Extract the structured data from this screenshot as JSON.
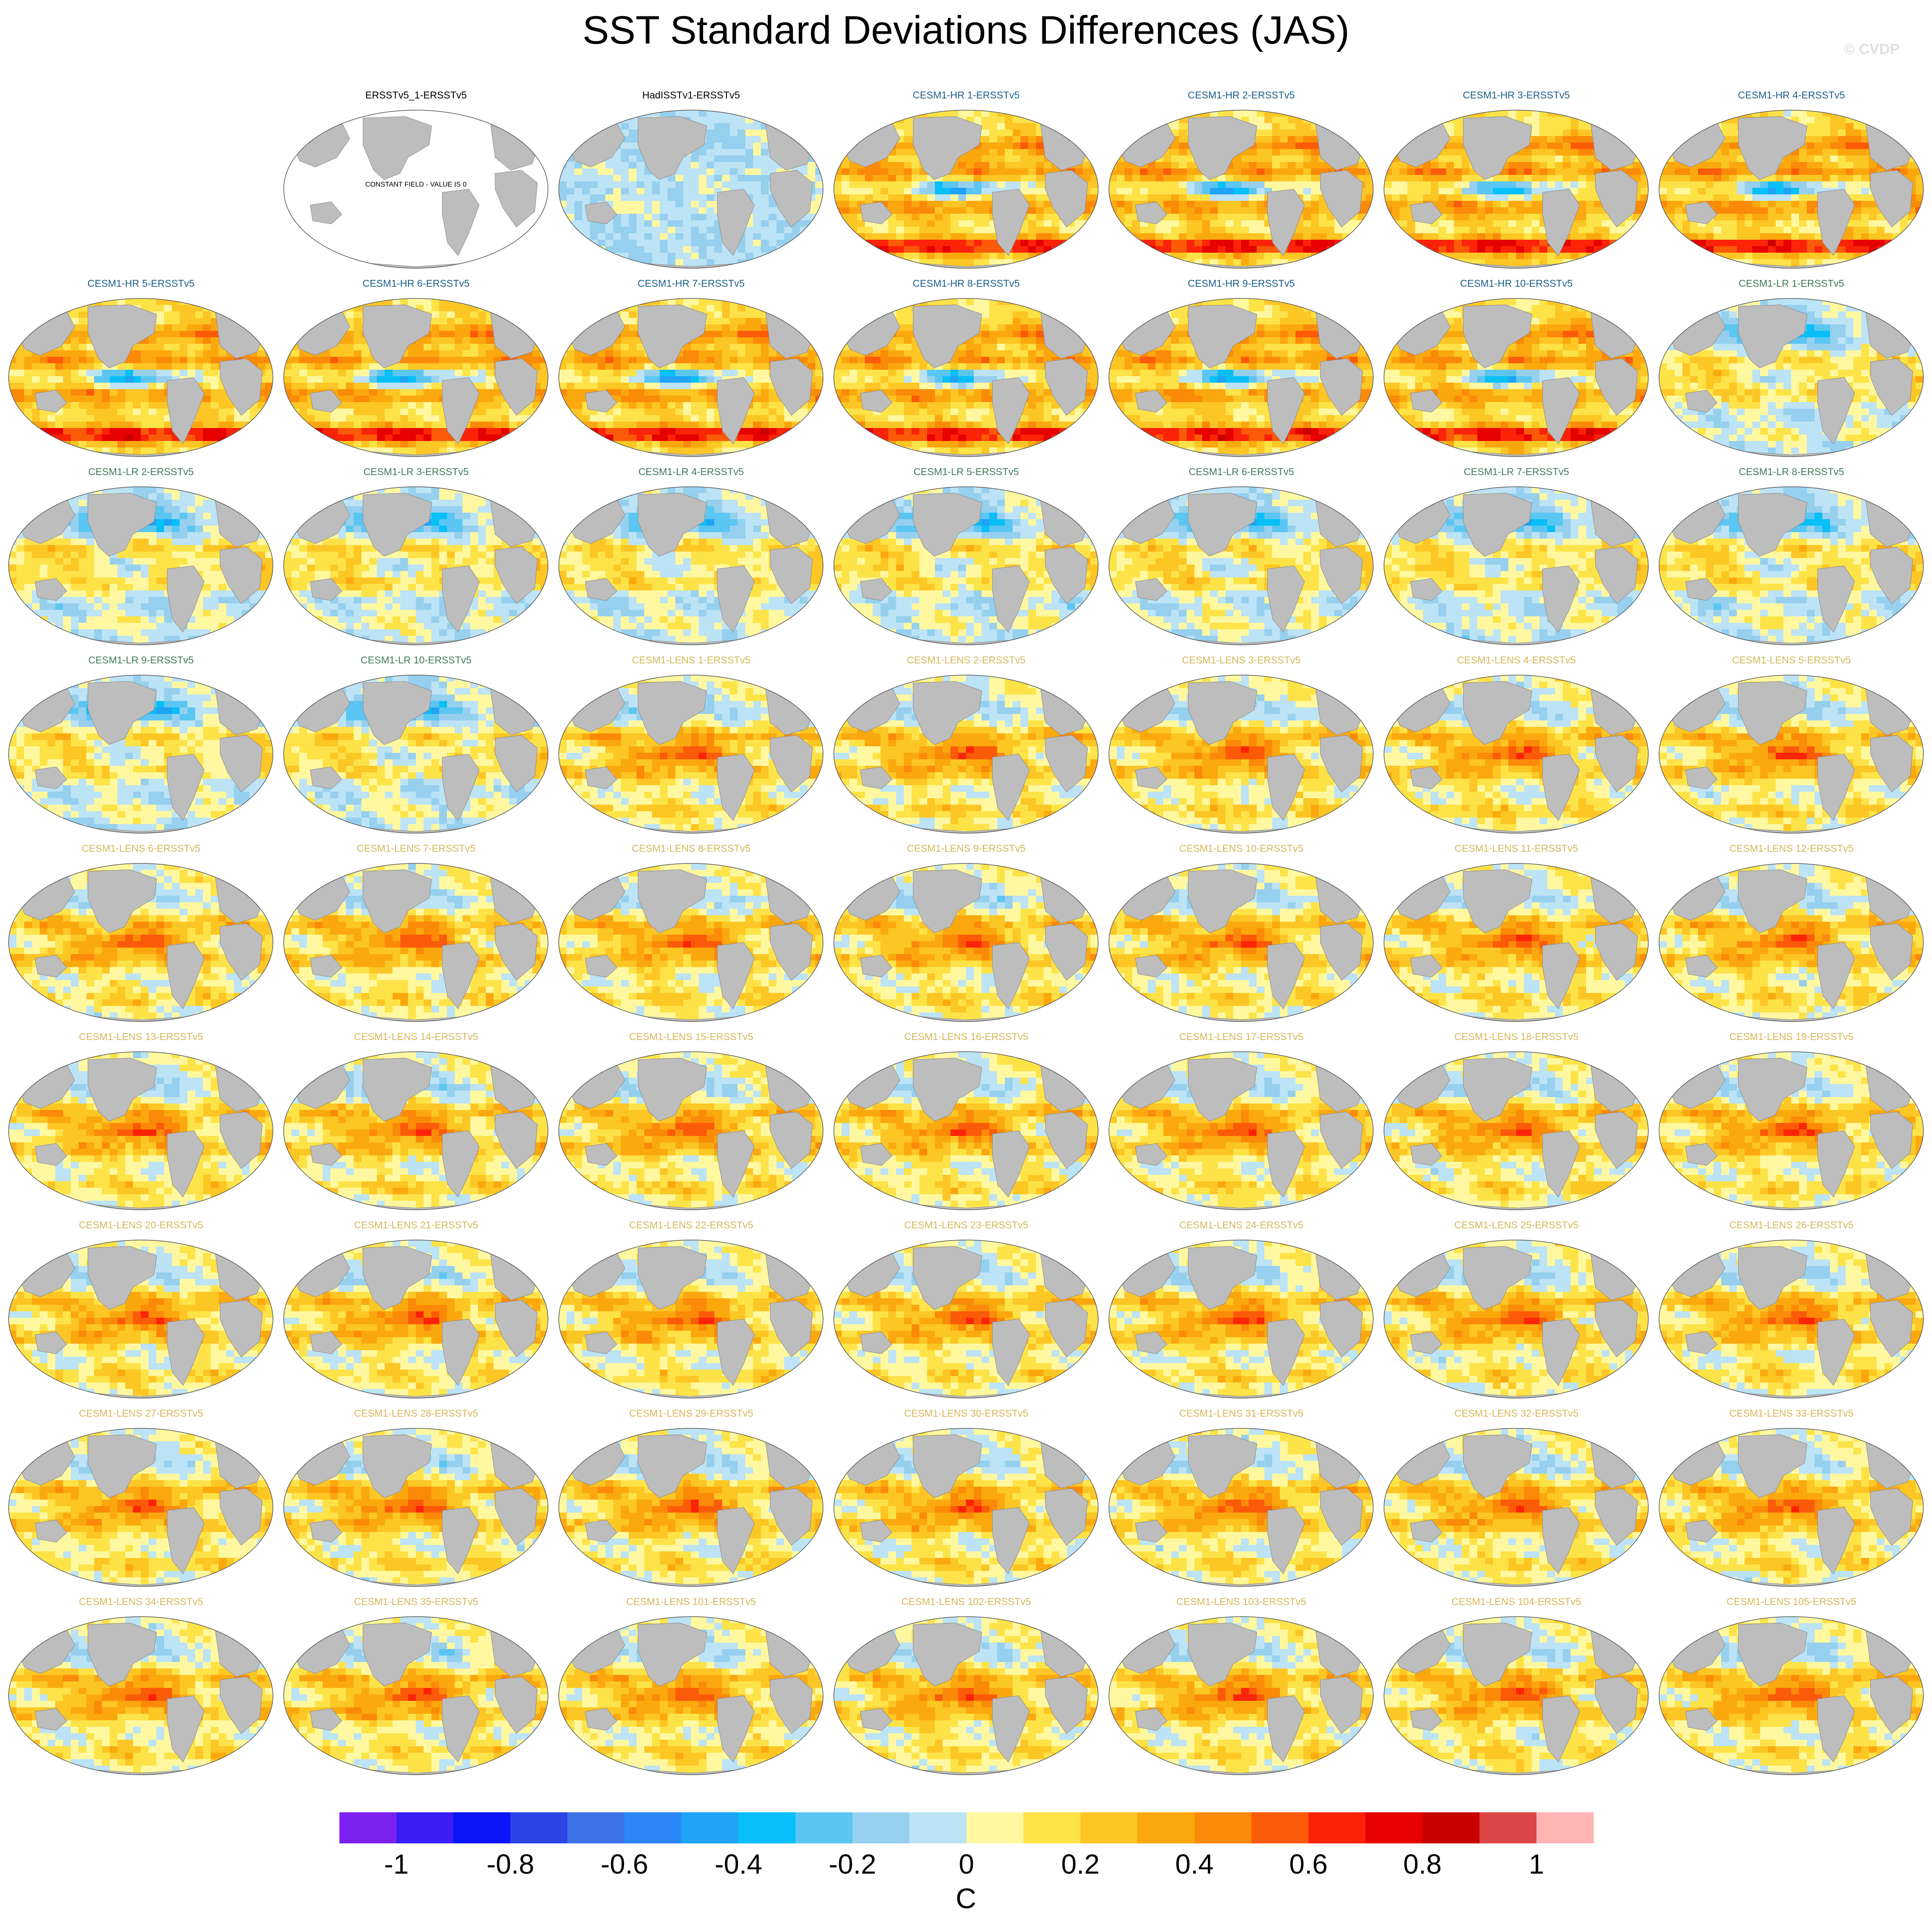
{
  "title": "SST Standard Deviations Differences (JAS)",
  "watermark": "© CVDP",
  "colors": {
    "land": "#bdbdbd",
    "obs_panel_title": "#000000",
    "hr_panel_title": "#1b5f8a",
    "lr_panel_title": "#3f7b5c",
    "lens_panel_title": "#d6b75a"
  },
  "chart_data": {
    "type": "heatmap",
    "projection": "Robinson (global)",
    "panel_layout": {
      "rows": 9,
      "columns": 7
    },
    "constant_field_note": "CONSTANT FIELD - VALUE IS 0",
    "panels": [
      {
        "title": "ERSSTv5_1-ERSSTv5",
        "group": "obs",
        "constant": true
      },
      {
        "title": "HadISSTv1-ERSSTv5",
        "group": "obs"
      },
      {
        "title": "CESM1-HR 1-ERSSTv5",
        "group": "hr"
      },
      {
        "title": "CESM1-HR 2-ERSSTv5",
        "group": "hr"
      },
      {
        "title": "CESM1-HR 3-ERSSTv5",
        "group": "hr"
      },
      {
        "title": "CESM1-HR 4-ERSSTv5",
        "group": "hr"
      },
      {
        "title": "CESM1-HR 5-ERSSTv5",
        "group": "hr"
      },
      {
        "title": "CESM1-HR 6-ERSSTv5",
        "group": "hr"
      },
      {
        "title": "CESM1-HR 7-ERSSTv5",
        "group": "hr"
      },
      {
        "title": "CESM1-HR 8-ERSSTv5",
        "group": "hr"
      },
      {
        "title": "CESM1-HR 9-ERSSTv5",
        "group": "hr"
      },
      {
        "title": "CESM1-HR 10-ERSSTv5",
        "group": "hr"
      },
      {
        "title": "CESM1-LR 1-ERSSTv5",
        "group": "lr"
      },
      {
        "title": "CESM1-LR 2-ERSSTv5",
        "group": "lr"
      },
      {
        "title": "CESM1-LR 3-ERSSTv5",
        "group": "lr"
      },
      {
        "title": "CESM1-LR 4-ERSSTv5",
        "group": "lr"
      },
      {
        "title": "CESM1-LR 5-ERSSTv5",
        "group": "lr"
      },
      {
        "title": "CESM1-LR 6-ERSSTv5",
        "group": "lr"
      },
      {
        "title": "CESM1-LR 7-ERSSTv5",
        "group": "lr"
      },
      {
        "title": "CESM1-LR 8-ERSSTv5",
        "group": "lr"
      },
      {
        "title": "CESM1-LR 9-ERSSTv5",
        "group": "lr"
      },
      {
        "title": "CESM1-LR 10-ERSSTv5",
        "group": "lr"
      },
      {
        "title": "CESM1-LENS 1-ERSSTv5",
        "group": "lens"
      },
      {
        "title": "CESM1-LENS 2-ERSSTv5",
        "group": "lens"
      },
      {
        "title": "CESM1-LENS 3-ERSSTv5",
        "group": "lens"
      },
      {
        "title": "CESM1-LENS 4-ERSSTv5",
        "group": "lens"
      },
      {
        "title": "CESM1-LENS 5-ERSSTv5",
        "group": "lens"
      },
      {
        "title": "CESM1-LENS 6-ERSSTv5",
        "group": "lens"
      },
      {
        "title": "CESM1-LENS 7-ERSSTv5",
        "group": "lens"
      },
      {
        "title": "CESM1-LENS 8-ERSSTv5",
        "group": "lens"
      },
      {
        "title": "CESM1-LENS 9-ERSSTv5",
        "group": "lens"
      },
      {
        "title": "CESM1-LENS 10-ERSSTv5",
        "group": "lens"
      },
      {
        "title": "CESM1-LENS 11-ERSSTv5",
        "group": "lens"
      },
      {
        "title": "CESM1-LENS 12-ERSSTv5",
        "group": "lens"
      },
      {
        "title": "CESM1-LENS 13-ERSSTv5",
        "group": "lens"
      },
      {
        "title": "CESM1-LENS 14-ERSSTv5",
        "group": "lens"
      },
      {
        "title": "CESM1-LENS 15-ERSSTv5",
        "group": "lens"
      },
      {
        "title": "CESM1-LENS 16-ERSSTv5",
        "group": "lens"
      },
      {
        "title": "CESM1-LENS 17-ERSSTv5",
        "group": "lens"
      },
      {
        "title": "CESM1-LENS 18-ERSSTv5",
        "group": "lens"
      },
      {
        "title": "CESM1-LENS 19-ERSSTv5",
        "group": "lens"
      },
      {
        "title": "CESM1-LENS 20-ERSSTv5",
        "group": "lens"
      },
      {
        "title": "CESM1-LENS 21-ERSSTv5",
        "group": "lens"
      },
      {
        "title": "CESM1-LENS 22-ERSSTv5",
        "group": "lens"
      },
      {
        "title": "CESM1-LENS 23-ERSSTv5",
        "group": "lens"
      },
      {
        "title": "CESM1-LENS 24-ERSSTv5",
        "group": "lens"
      },
      {
        "title": "CESM1-LENS 25-ERSSTv5",
        "group": "lens"
      },
      {
        "title": "CESM1-LENS 26-ERSSTv5",
        "group": "lens"
      },
      {
        "title": "CESM1-LENS 27-ERSSTv5",
        "group": "lens"
      },
      {
        "title": "CESM1-LENS 28-ERSSTv5",
        "group": "lens"
      },
      {
        "title": "CESM1-LENS 29-ERSSTv5",
        "group": "lens"
      },
      {
        "title": "CESM1-LENS 30-ERSSTv5",
        "group": "lens"
      },
      {
        "title": "CESM1-LENS 31-ERSSTv5",
        "group": "lens"
      },
      {
        "title": "CESM1-LENS 32-ERSSTv5",
        "group": "lens"
      },
      {
        "title": "CESM1-LENS 33-ERSSTv5",
        "group": "lens"
      },
      {
        "title": "CESM1-LENS 34-ERSSTv5",
        "group": "lens"
      },
      {
        "title": "CESM1-LENS 35-ERSSTv5",
        "group": "lens"
      },
      {
        "title": "CESM1-LENS 101-ERSSTv5",
        "group": "lens"
      },
      {
        "title": "CESM1-LENS 102-ERSSTv5",
        "group": "lens"
      },
      {
        "title": "CESM1-LENS 103-ERSSTv5",
        "group": "lens"
      },
      {
        "title": "CESM1-LENS 104-ERSSTv5",
        "group": "lens"
      },
      {
        "title": "CESM1-LENS 105-ERSSTv5",
        "group": "lens"
      }
    ],
    "colorbar": {
      "unit_label": "C",
      "range": [
        -1.1,
        1.1
      ],
      "interval": 0.1,
      "tick_labels": [
        "-1",
        "-0.8",
        "-0.6",
        "-0.4",
        "-0.2",
        "0",
        "0.2",
        "0.4",
        "0.6",
        "0.8",
        "1"
      ],
      "tick_values": [
        -1,
        -0.8,
        -0.6,
        -0.4,
        -0.2,
        0,
        0.2,
        0.4,
        0.6,
        0.8,
        1
      ],
      "colors": [
        "#7b22f0",
        "#3c1df5",
        "#0d14f5",
        "#2b45e6",
        "#3c73e8",
        "#2b87f5",
        "#1ea3f5",
        "#08bff8",
        "#5cc6f2",
        "#96d0ee",
        "#bce3f6",
        "#fff8a0",
        "#fde348",
        "#fcc625",
        "#fba80f",
        "#fb8a08",
        "#fb5a08",
        "#fb2308",
        "#e60000",
        "#c80000",
        "#dc4646",
        "#ffb4b4"
      ]
    }
  }
}
